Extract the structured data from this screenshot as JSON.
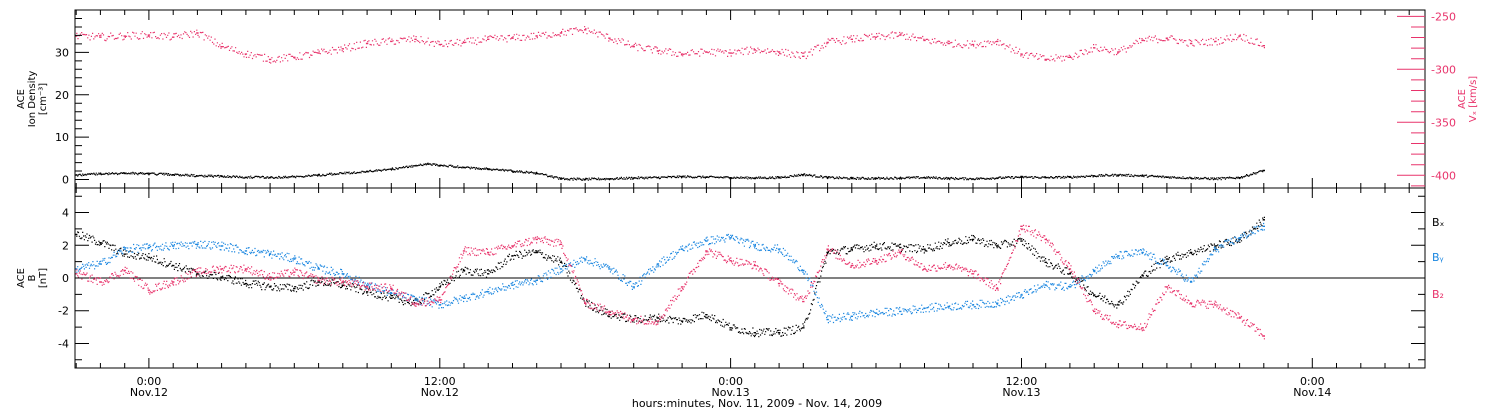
{
  "colors": {
    "black": "#000000",
    "pink": "#e8336b",
    "blue": "#1a86e0"
  },
  "xaxis": {
    "caption": "hours:minutes, Nov. 11, 2009 - Nov. 14, 2009",
    "ticks": [
      {
        "hours": 0,
        "time": "0:00",
        "date": "Nov.12"
      },
      {
        "hours": 12,
        "time": "12:00",
        "date": "Nov.12"
      },
      {
        "hours": 24,
        "time": "0:00",
        "date": "Nov.13"
      },
      {
        "hours": 36,
        "time": "12:00",
        "date": "Nov.13"
      },
      {
        "hours": 48,
        "time": "0:00",
        "date": "Nov.14"
      }
    ],
    "range_hours": [
      -3.05,
      52.65
    ],
    "minor_step_hours": 1
  },
  "chart_data": [
    {
      "type": "scatter",
      "panel": "top",
      "ylabel_left": [
        "ACE",
        "Ion Density",
        "[cm⁻³]"
      ],
      "ylabel_right": [
        "ACE",
        "Vₓ [km/s]"
      ],
      "ylim_left": [
        -2,
        40
      ],
      "ylim_right": [
        -412,
        -244
      ],
      "left_ticks": [
        0,
        10,
        20,
        30
      ],
      "right_ticks": [
        -400,
        -350,
        -300,
        -250
      ],
      "series": [
        {
          "axis": "left",
          "color": "black",
          "points": [
            [
              -3,
              1.2
            ],
            [
              -2,
              1.5
            ],
            [
              -1,
              1.6
            ],
            [
              0,
              1.5
            ],
            [
              1,
              1.3
            ],
            [
              2,
              1.0
            ],
            [
              3,
              0.9
            ],
            [
              4,
              0.7
            ],
            [
              5,
              0.6
            ],
            [
              6,
              0.8
            ],
            [
              7,
              1.2
            ],
            [
              8,
              1.6
            ],
            [
              9,
              2.0
            ],
            [
              10,
              2.6
            ],
            [
              11,
              3.4
            ],
            [
              11.5,
              3.8
            ],
            [
              12,
              3.5
            ],
            [
              13,
              3.0
            ],
            [
              14,
              2.6
            ],
            [
              15,
              2.1
            ],
            [
              16,
              1.6
            ],
            [
              17,
              0.3
            ],
            [
              18,
              0.2
            ],
            [
              19,
              0.3
            ],
            [
              20,
              0.5
            ],
            [
              21,
              0.6
            ],
            [
              22,
              0.8
            ],
            [
              23,
              0.7
            ],
            [
              24,
              0.6
            ],
            [
              25,
              0.5
            ],
            [
              26,
              0.6
            ],
            [
              27,
              1.3
            ],
            [
              28,
              0.6
            ],
            [
              29,
              0.4
            ],
            [
              30,
              0.4
            ],
            [
              31,
              0.5
            ],
            [
              32,
              0.6
            ],
            [
              33,
              0.4
            ],
            [
              34,
              0.3
            ],
            [
              35,
              0.5
            ],
            [
              36,
              0.7
            ],
            [
              37,
              0.6
            ],
            [
              38,
              0.7
            ],
            [
              39,
              1.0
            ],
            [
              40,
              1.2
            ],
            [
              41,
              1.0
            ],
            [
              42,
              0.7
            ],
            [
              43,
              0.5
            ],
            [
              44,
              0.3
            ],
            [
              45,
              0.6
            ],
            [
              46,
              2.3
            ]
          ]
        },
        {
          "axis": "right",
          "color": "pink",
          "points": [
            [
              -3,
              -268
            ],
            [
              -2,
              -269
            ],
            [
              -1,
              -268
            ],
            [
              0,
              -267
            ],
            [
              1,
              -269
            ],
            [
              2,
              -265
            ],
            [
              3,
              -278
            ],
            [
              4,
              -285
            ],
            [
              5,
              -290
            ],
            [
              6,
              -288
            ],
            [
              7,
              -284
            ],
            [
              8,
              -280
            ],
            [
              9,
              -275
            ],
            [
              10,
              -273
            ],
            [
              11,
              -271
            ],
            [
              12,
              -276
            ],
            [
              13,
              -274
            ],
            [
              14,
              -271
            ],
            [
              15,
              -270
            ],
            [
              16,
              -268
            ],
            [
              17,
              -265
            ],
            [
              18,
              -262
            ],
            [
              19,
              -270
            ],
            [
              20,
              -278
            ],
            [
              21,
              -282
            ],
            [
              22,
              -285
            ],
            [
              23,
              -283
            ],
            [
              24,
              -284
            ],
            [
              25,
              -281
            ],
            [
              26,
              -283
            ],
            [
              27,
              -287
            ],
            [
              28,
              -274
            ],
            [
              29,
              -271
            ],
            [
              30,
              -269
            ],
            [
              31,
              -267
            ],
            [
              32,
              -272
            ],
            [
              33,
              -275
            ],
            [
              34,
              -276
            ],
            [
              35,
              -273
            ],
            [
              36,
              -285
            ],
            [
              37,
              -290
            ],
            [
              38,
              -288
            ],
            [
              39,
              -279
            ],
            [
              40,
              -283
            ],
            [
              41,
              -272
            ],
            [
              42,
              -270
            ],
            [
              43,
              -275
            ],
            [
              44,
              -273
            ],
            [
              45,
              -268
            ],
            [
              46,
              -277
            ]
          ]
        }
      ]
    },
    {
      "type": "scatter",
      "panel": "bottom",
      "ylabel_left": [
        "ACE",
        "B",
        "[nT]"
      ],
      "ylim": [
        -5.5,
        5.5
      ],
      "ticks": [
        -4,
        -2,
        0,
        2,
        4
      ],
      "zero_line": true,
      "legend": [
        {
          "label": "Bₓ",
          "color": "black"
        },
        {
          "label": "Bᵧ",
          "color": "blue"
        },
        {
          "label": "B₂",
          "color": "pink"
        }
      ],
      "series": [
        {
          "name": "Bₓ",
          "color": "black",
          "points": [
            [
              -3,
              2.7
            ],
            [
              -2,
              2.2
            ],
            [
              -1,
              1.5
            ],
            [
              0,
              1.3
            ],
            [
              1,
              0.8
            ],
            [
              2,
              0.3
            ],
            [
              3,
              0.1
            ],
            [
              4,
              -0.3
            ],
            [
              5,
              -0.5
            ],
            [
              6,
              -0.6
            ],
            [
              7,
              -0.2
            ],
            [
              8,
              -0.4
            ],
            [
              9,
              -0.8
            ],
            [
              10,
              -1.2
            ],
            [
              11,
              -1.5
            ],
            [
              12,
              -0.5
            ],
            [
              13,
              0.5
            ],
            [
              14,
              0.3
            ],
            [
              15,
              1.4
            ],
            [
              16,
              1.6
            ],
            [
              17,
              1.0
            ],
            [
              18,
              -1.5
            ],
            [
              19,
              -2.2
            ],
            [
              20,
              -2.5
            ],
            [
              21,
              -2.4
            ],
            [
              22,
              -2.6
            ],
            [
              23,
              -2.2
            ],
            [
              24,
              -3.0
            ],
            [
              25,
              -3.3
            ],
            [
              26,
              -3.3
            ],
            [
              27,
              -3.0
            ],
            [
              28,
              1.6
            ],
            [
              29,
              1.8
            ],
            [
              30,
              2.0
            ],
            [
              31,
              1.9
            ],
            [
              32,
              1.8
            ],
            [
              33,
              2.2
            ],
            [
              34,
              2.4
            ],
            [
              35,
              2.0
            ],
            [
              36,
              2.3
            ],
            [
              37,
              1.0
            ],
            [
              38,
              0.3
            ],
            [
              39,
              -1.0
            ],
            [
              40,
              -1.6
            ],
            [
              41,
              0.2
            ],
            [
              42,
              1.2
            ],
            [
              43,
              1.6
            ],
            [
              44,
              2.0
            ],
            [
              45,
              2.4
            ],
            [
              46,
              3.6
            ]
          ]
        },
        {
          "name": "Bᵧ",
          "color": "blue",
          "points": [
            [
              -3,
              0.6
            ],
            [
              -2,
              0.9
            ],
            [
              -1,
              1.8
            ],
            [
              0,
              1.9
            ],
            [
              1,
              2.0
            ],
            [
              2,
              2.1
            ],
            [
              3,
              2.0
            ],
            [
              4,
              1.7
            ],
            [
              5,
              1.5
            ],
            [
              6,
              1.2
            ],
            [
              7,
              0.6
            ],
            [
              8,
              0.3
            ],
            [
              9,
              -0.4
            ],
            [
              10,
              -0.9
            ],
            [
              11,
              -1.3
            ],
            [
              12,
              -1.6
            ],
            [
              13,
              -1.2
            ],
            [
              14,
              -0.8
            ],
            [
              15,
              -0.4
            ],
            [
              16,
              -0.1
            ],
            [
              17,
              0.6
            ],
            [
              18,
              1.2
            ],
            [
              19,
              0.6
            ],
            [
              20,
              -0.5
            ],
            [
              21,
              0.9
            ],
            [
              22,
              1.8
            ],
            [
              23,
              2.3
            ],
            [
              24,
              2.5
            ],
            [
              25,
              2.0
            ],
            [
              26,
              1.8
            ],
            [
              27,
              0.5
            ],
            [
              28,
              -2.5
            ],
            [
              29,
              -2.3
            ],
            [
              30,
              -2.1
            ],
            [
              31,
              -2.0
            ],
            [
              32,
              -1.8
            ],
            [
              33,
              -1.7
            ],
            [
              34,
              -1.6
            ],
            [
              35,
              -1.5
            ],
            [
              36,
              -1.0
            ],
            [
              37,
              -0.4
            ],
            [
              38,
              -0.5
            ],
            [
              39,
              0.5
            ],
            [
              40,
              1.4
            ],
            [
              41,
              1.6
            ],
            [
              42,
              0.8
            ],
            [
              43,
              -0.2
            ],
            [
              44,
              1.8
            ],
            [
              45,
              2.5
            ],
            [
              46,
              3.2
            ]
          ]
        },
        {
          "name": "B₂",
          "color": "pink",
          "points": [
            [
              -3,
              0.3
            ],
            [
              -2,
              -0.2
            ],
            [
              -1,
              0.5
            ],
            [
              0,
              -0.7
            ],
            [
              1,
              -0.2
            ],
            [
              2,
              0.4
            ],
            [
              3,
              0.6
            ],
            [
              4,
              0.6
            ],
            [
              5,
              0.1
            ],
            [
              6,
              0.4
            ],
            [
              7,
              -0.1
            ],
            [
              8,
              -0.2
            ],
            [
              9,
              -0.5
            ],
            [
              10,
              -0.6
            ],
            [
              11,
              -1.5
            ],
            [
              12,
              -1.3
            ],
            [
              13,
              1.7
            ],
            [
              14,
              1.6
            ],
            [
              15,
              2.0
            ],
            [
              16,
              2.4
            ],
            [
              17,
              2.1
            ],
            [
              18,
              -1.5
            ],
            [
              19,
              -2.0
            ],
            [
              20,
              -2.5
            ],
            [
              21,
              -2.6
            ],
            [
              22,
              -0.5
            ],
            [
              23,
              1.7
            ],
            [
              24,
              1.1
            ],
            [
              25,
              0.8
            ],
            [
              26,
              -0.3
            ],
            [
              27,
              -1.4
            ],
            [
              28,
              1.8
            ],
            [
              29,
              0.8
            ],
            [
              30,
              1.1
            ],
            [
              31,
              1.6
            ],
            [
              32,
              0.6
            ],
            [
              33,
              0.8
            ],
            [
              34,
              0.3
            ],
            [
              35,
              -0.6
            ],
            [
              36,
              3.2
            ],
            [
              37,
              2.4
            ],
            [
              38,
              0.6
            ],
            [
              39,
              -2.0
            ],
            [
              40,
              -2.8
            ],
            [
              41,
              -3.0
            ],
            [
              42,
              -0.5
            ],
            [
              43,
              -1.5
            ],
            [
              44,
              -1.6
            ],
            [
              45,
              -2.4
            ],
            [
              46,
              -3.5
            ]
          ]
        }
      ]
    }
  ]
}
